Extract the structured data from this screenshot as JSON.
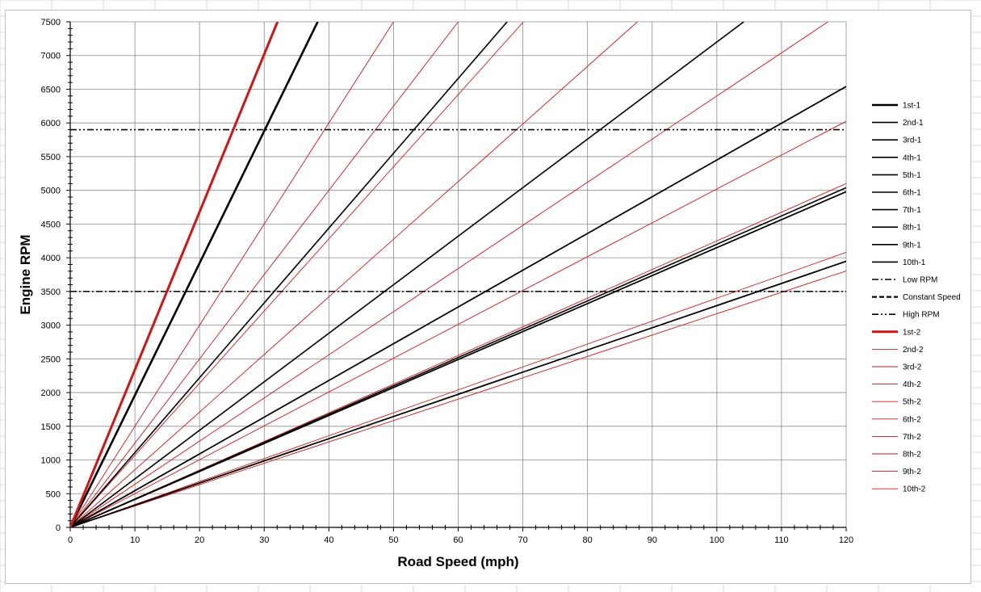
{
  "chart_data": {
    "type": "line",
    "xlabel": "Road Speed  (mph)",
    "ylabel": "Engine RPM",
    "xlim": [
      0,
      120
    ],
    "ylim": [
      0,
      7500
    ],
    "x_ticks": [
      0,
      10,
      20,
      30,
      40,
      50,
      60,
      70,
      80,
      90,
      100,
      110,
      120
    ],
    "y_ticks": [
      0,
      500,
      1000,
      1500,
      2000,
      2500,
      3000,
      3500,
      4000,
      4500,
      5000,
      5500,
      6000,
      6500,
      7000,
      7500
    ],
    "grid": true,
    "legend_position": "right",
    "series": [
      {
        "name": "1st-1",
        "kind": "gear",
        "color": "#000000",
        "width": 2.6,
        "dash": "",
        "slope": 196.0
      },
      {
        "name": "2nd-1",
        "kind": "gear",
        "color": "#000000",
        "width": 1.6,
        "dash": "",
        "slope": 111.0
      },
      {
        "name": "3rd-1",
        "kind": "gear",
        "color": "#000000",
        "width": 1.6,
        "dash": "",
        "slope": 72.0
      },
      {
        "name": "4th-1",
        "kind": "gear",
        "color": "#000000",
        "width": 1.6,
        "dash": "",
        "slope": 54.5
      },
      {
        "name": "5th-1",
        "kind": "gear",
        "color": "#000000",
        "width": 1.6,
        "dash": "",
        "slope": 42.0
      },
      {
        "name": "6th-1",
        "kind": "gear",
        "color": "#000000",
        "width": 1.6,
        "dash": "",
        "slope": 54.5
      },
      {
        "name": "7th-1",
        "kind": "gear",
        "color": "#000000",
        "width": 1.6,
        "dash": "",
        "slope": 41.5
      },
      {
        "name": "8th-1",
        "kind": "gear",
        "color": "#000000",
        "width": 1.6,
        "dash": "",
        "slope": 32.9
      },
      {
        "name": "9th-1",
        "kind": "gear",
        "color": "#000000",
        "width": 1.6,
        "dash": "",
        "slope": 41.5
      },
      {
        "name": "10th-1",
        "kind": "gear",
        "color": "#000000",
        "width": 1.6,
        "dash": "",
        "slope": 32.9
      },
      {
        "name": "Low RPM",
        "kind": "hline",
        "color": "#000000",
        "width": 1.6,
        "dash": "8 3 2 3",
        "y": 3500
      },
      {
        "name": "Constant Speed",
        "kind": "legend-only",
        "color": "#000000",
        "width": 2.2,
        "dash": "6 3",
        "y": null
      },
      {
        "name": "High RPM",
        "kind": "hline",
        "color": "#000000",
        "width": 1.6,
        "dash": "8 3 2 3 2 3",
        "y": 5900
      },
      {
        "name": "1st-2",
        "kind": "gear",
        "color": "#d21414",
        "width": 3.0,
        "dash": "",
        "slope": 234.0
      },
      {
        "name": "2nd-2",
        "kind": "gear",
        "color": "#d21414",
        "width": 0.9,
        "dash": "",
        "slope": 150.0
      },
      {
        "name": "3rd-2",
        "kind": "gear",
        "color": "#d21414",
        "width": 0.9,
        "dash": "",
        "slope": 125.0
      },
      {
        "name": "4th-2",
        "kind": "gear",
        "color": "#d21414",
        "width": 0.9,
        "dash": "",
        "slope": 107.0
      },
      {
        "name": "5th-2",
        "kind": "gear",
        "color": "#d21414",
        "width": 0.9,
        "dash": "",
        "slope": 85.5
      },
      {
        "name": "6th-2",
        "kind": "gear",
        "color": "#d21414",
        "width": 0.9,
        "dash": "",
        "slope": 64.0
      },
      {
        "name": "7th-2",
        "kind": "gear",
        "color": "#d21414",
        "width": 0.9,
        "dash": "",
        "slope": 50.2
      },
      {
        "name": "8th-2",
        "kind": "gear",
        "color": "#d21414",
        "width": 0.9,
        "dash": "",
        "slope": 42.5
      },
      {
        "name": "9th-2",
        "kind": "gear",
        "color": "#d21414",
        "width": 0.9,
        "dash": "",
        "slope": 34.0
      },
      {
        "name": "10th-2",
        "kind": "gear",
        "color": "#d21414",
        "width": 0.9,
        "dash": "",
        "slope": 31.7
      }
    ]
  }
}
